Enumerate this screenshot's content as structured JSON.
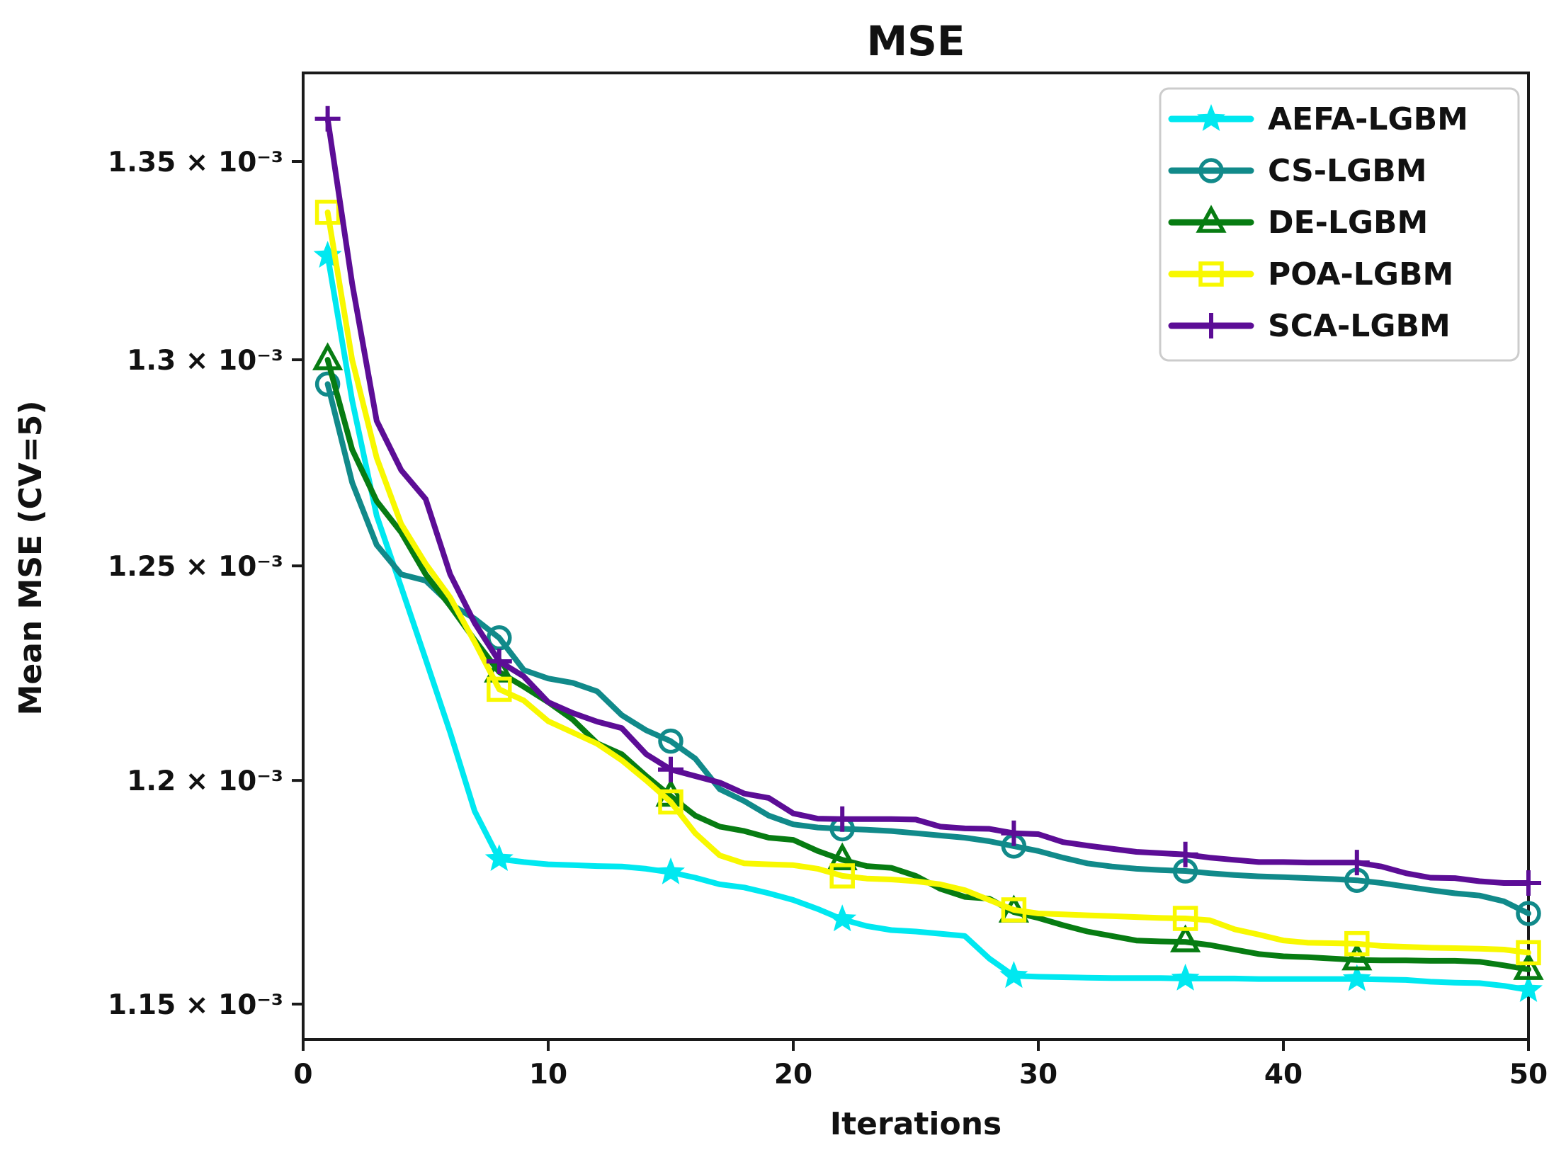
{
  "chart_data": {
    "type": "line",
    "title": "MSE",
    "xlabel": "Iterations",
    "ylabel": "Mean MSE (CV=5)",
    "x_ticks": [
      0,
      10,
      20,
      30,
      40,
      50
    ],
    "xlim": [
      0,
      50
    ],
    "y_scale": "log",
    "y_unit_multiplier": 0.001,
    "ylim_in_1e-3": [
      1.15,
      1.372
    ],
    "y_ticks": [
      {
        "value": 1.35,
        "label": "1.35 × 10⁻³"
      },
      {
        "value": 1.3,
        "label": "1.3 × 10⁻³"
      },
      {
        "value": 1.25,
        "label": "1.25 × 10⁻³"
      },
      {
        "value": 1.2,
        "label": "1.2 × 10⁻³"
      },
      {
        "value": 1.15,
        "label": "1.15 × 10⁻³"
      }
    ],
    "grid": false,
    "legend_position": "upper right",
    "marker_every": 7,
    "x": [
      1,
      2,
      3,
      4,
      5,
      6,
      7,
      8,
      9,
      10,
      11,
      12,
      13,
      14,
      15,
      16,
      17,
      18,
      19,
      20,
      21,
      22,
      23,
      24,
      25,
      26,
      27,
      28,
      29,
      30,
      31,
      32,
      33,
      34,
      35,
      36,
      37,
      38,
      39,
      40,
      41,
      42,
      43,
      44,
      45,
      46,
      47,
      48,
      49,
      50
    ],
    "series": [
      {
        "name": "AEFA-LGBM",
        "color": "#00e8f0",
        "marker": "star",
        "values_in_1e-3": [
          1.326,
          1.29,
          1.262,
          1.245,
          1.228,
          1.211,
          1.193,
          1.1822,
          1.1815,
          1.181,
          1.1808,
          1.1806,
          1.1805,
          1.18,
          1.1792,
          1.178,
          1.1765,
          1.1758,
          1.1745,
          1.173,
          1.171,
          1.1687,
          1.1672,
          1.1663,
          1.166,
          1.1655,
          1.165,
          1.16,
          1.1562,
          1.156,
          1.1559,
          1.1558,
          1.1557,
          1.1557,
          1.1557,
          1.1556,
          1.1556,
          1.1556,
          1.1555,
          1.1555,
          1.1555,
          1.1555,
          1.1555,
          1.1554,
          1.1553,
          1.1549,
          1.1547,
          1.1546,
          1.154,
          1.1531
        ]
      },
      {
        "name": "CS-LGBM",
        "color": "#118a8a",
        "marker": "circle",
        "values_in_1e-3": [
          1.294,
          1.27,
          1.255,
          1.248,
          1.2465,
          1.241,
          1.2375,
          1.233,
          1.2255,
          1.2235,
          1.2225,
          1.2205,
          1.215,
          1.2115,
          1.209,
          1.205,
          1.198,
          1.1953,
          1.192,
          1.19,
          1.1893,
          1.189,
          1.1888,
          1.1885,
          1.188,
          1.1875,
          1.187,
          1.1862,
          1.1851,
          1.184,
          1.1825,
          1.1812,
          1.1805,
          1.18,
          1.1797,
          1.1795,
          1.179,
          1.1786,
          1.1783,
          1.1781,
          1.1779,
          1.1777,
          1.1774,
          1.1768,
          1.176,
          1.1752,
          1.1745,
          1.174,
          1.1727,
          1.17
        ]
      },
      {
        "name": "DE-LGBM",
        "color": "#077c12",
        "marker": "triangle",
        "values_in_1e-3": [
          1.3,
          1.278,
          1.2655,
          1.258,
          1.248,
          1.2405,
          1.2325,
          1.225,
          1.2216,
          1.218,
          1.214,
          1.2085,
          1.206,
          1.201,
          1.1964,
          1.192,
          1.1895,
          1.1885,
          1.187,
          1.1865,
          1.184,
          1.182,
          1.1806,
          1.1802,
          1.1784,
          1.1755,
          1.1737,
          1.1733,
          1.1703,
          1.169,
          1.1674,
          1.166,
          1.165,
          1.164,
          1.1638,
          1.1637,
          1.163,
          1.162,
          1.161,
          1.1605,
          1.1603,
          1.16,
          1.1597,
          1.1596,
          1.1596,
          1.1595,
          1.1595,
          1.1593,
          1.1585,
          1.1576
        ]
      },
      {
        "name": "POA-LGBM",
        "color": "#f8f800",
        "marker": "square",
        "values_in_1e-3": [
          1.337,
          1.3,
          1.276,
          1.26,
          1.2505,
          1.2425,
          1.232,
          1.221,
          1.2184,
          1.2136,
          1.211,
          1.2084,
          1.2046,
          1.2,
          1.1951,
          1.188,
          1.183,
          1.1812,
          1.181,
          1.1808,
          1.18,
          1.1784,
          1.1778,
          1.1776,
          1.1772,
          1.1765,
          1.1752,
          1.173,
          1.1708,
          1.17,
          1.1698,
          1.1696,
          1.1694,
          1.1692,
          1.169,
          1.1689,
          1.1685,
          1.1665,
          1.1653,
          1.164,
          1.1635,
          1.1634,
          1.1633,
          1.1628,
          1.1626,
          1.1624,
          1.1623,
          1.1622,
          1.162,
          1.1613
        ]
      },
      {
        "name": "SCA-LGBM",
        "color": "#5c0d96",
        "marker": "plus",
        "values_in_1e-3": [
          1.361,
          1.319,
          1.285,
          1.273,
          1.266,
          1.248,
          1.2365,
          1.2275,
          1.224,
          1.218,
          1.2155,
          1.2135,
          1.212,
          1.206,
          1.2025,
          1.201,
          1.1995,
          1.197,
          1.196,
          1.1925,
          1.1913,
          1.1912,
          1.1912,
          1.1912,
          1.1911,
          1.1895,
          1.1891,
          1.189,
          1.188,
          1.1878,
          1.186,
          1.1852,
          1.1845,
          1.1838,
          1.1835,
          1.1832,
          1.1825,
          1.182,
          1.1815,
          1.1815,
          1.1814,
          1.1814,
          1.1814,
          1.1805,
          1.179,
          1.178,
          1.1779,
          1.1772,
          1.1768,
          1.1768
        ]
      }
    ]
  },
  "layout_colors": {
    "spine": "#1a1a1a",
    "legend_border": "#cccccc",
    "background": "#ffffff"
  }
}
